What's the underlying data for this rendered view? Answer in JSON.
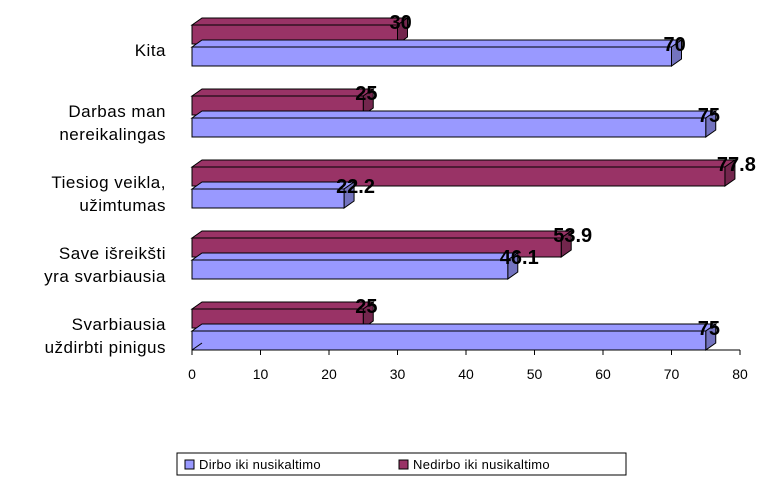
{
  "chart_data": {
    "type": "bar",
    "orientation": "horizontal",
    "style": "3d",
    "categories": [
      [
        "Kita"
      ],
      [
        "Darbas man",
        "nereikalingas"
      ],
      [
        "Tiesiog veikla,",
        "užimtumas"
      ],
      [
        "Save išreikšti",
        "yra svarbiausia"
      ],
      [
        "Svarbiausia",
        "uždirbti pinigus"
      ]
    ],
    "series": [
      {
        "name": "Dirbo iki nusikaltimo",
        "color": "#9999ff",
        "values": [
          70,
          75,
          22.2,
          46.1,
          75
        ],
        "labels": [
          "70",
          "75",
          "22.2",
          "46.1",
          "75"
        ]
      },
      {
        "name": "Nedirbo iki nusikaltimo",
        "color": "#993366",
        "values": [
          30,
          25,
          77.8,
          53.9,
          25
        ],
        "labels": [
          "30",
          "25",
          "77.8",
          "53.9",
          "25"
        ]
      }
    ],
    "xlim": [
      0,
      80
    ],
    "xticks": [
      "0",
      "10",
      "20",
      "30",
      "40",
      "50",
      "60",
      "70",
      "80"
    ],
    "grid": false,
    "legend_position": "bottom"
  }
}
